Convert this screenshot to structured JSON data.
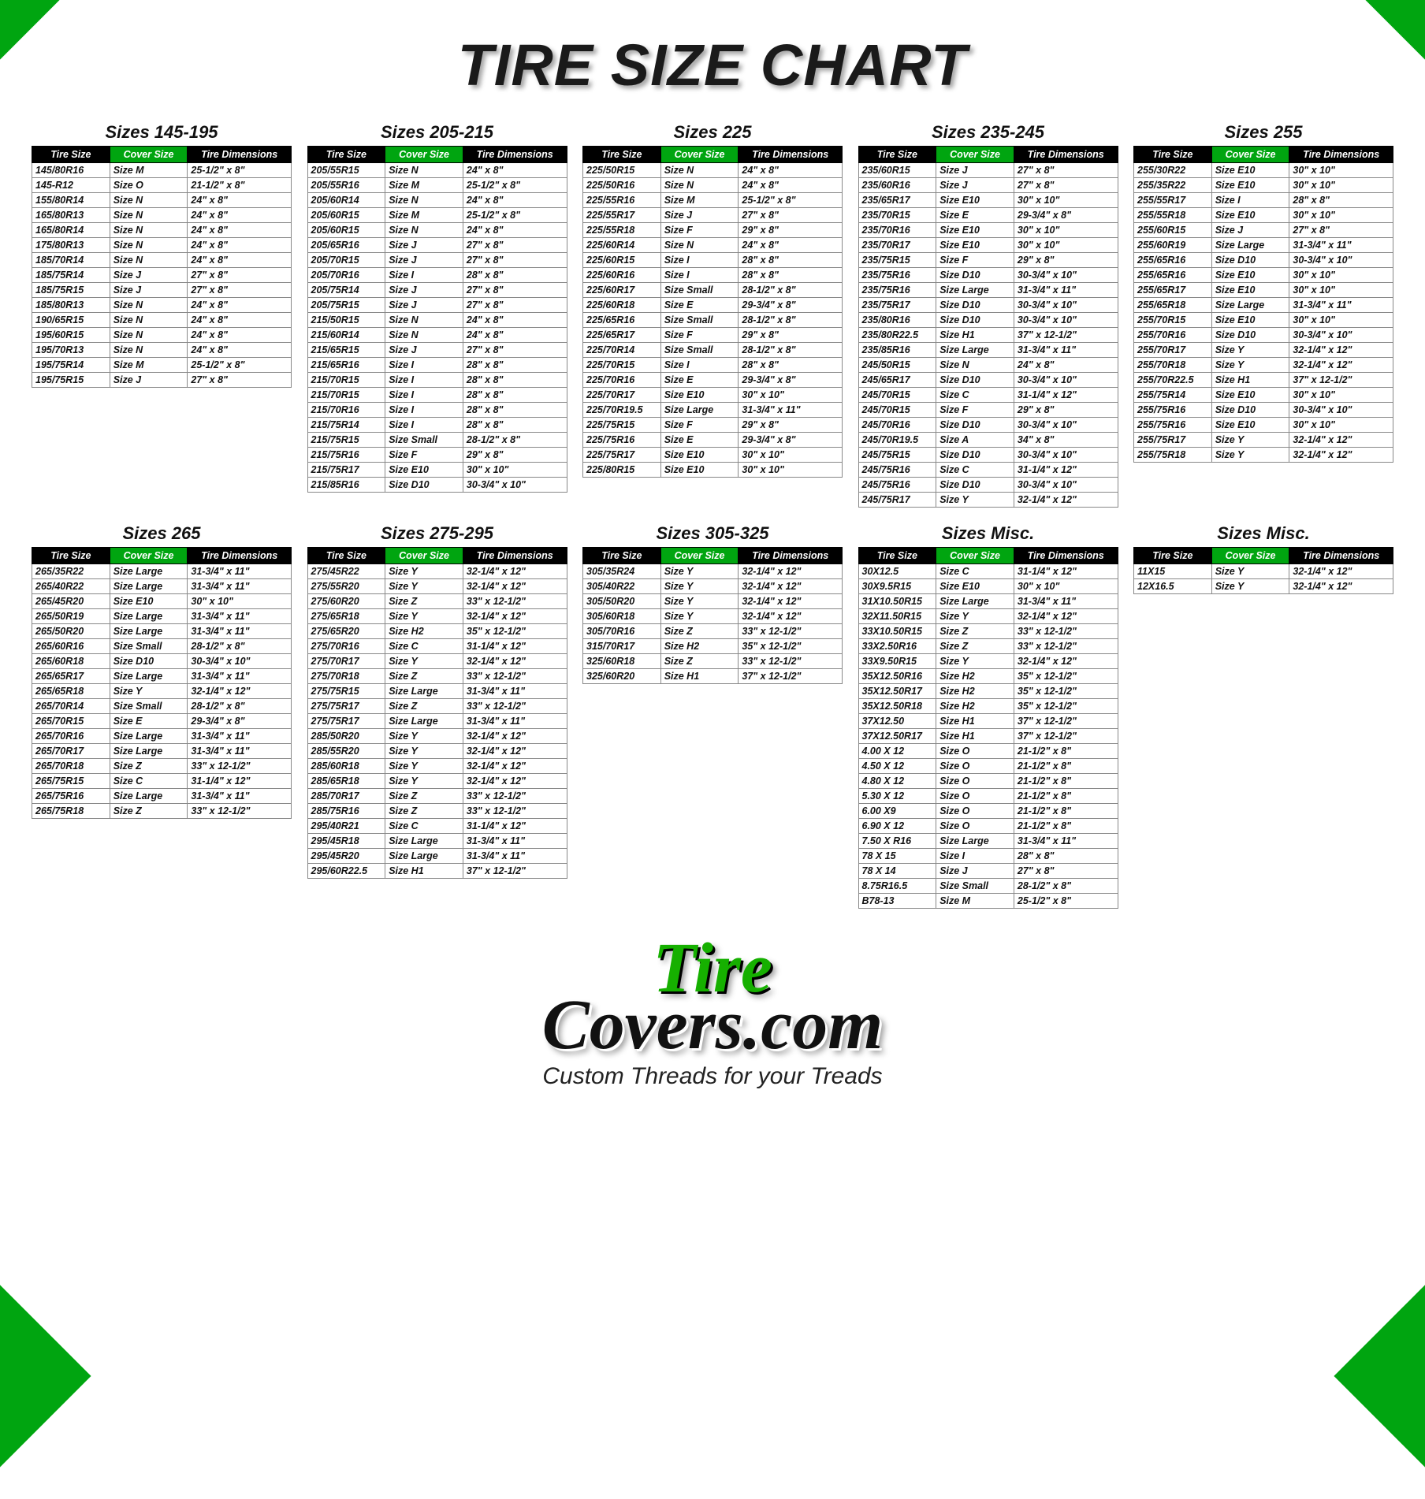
{
  "title": "TIRE SIZE CHART",
  "columns": [
    "Tire Size",
    "Cover Size",
    "Tire Dimensions"
  ],
  "logo_tire": "Tire",
  "logo_covers": "Covers.com",
  "tagline": "Custom Threads for your Treads",
  "blocks": [
    {
      "heading": "Sizes 145-195",
      "rows": [
        [
          "145/80R16",
          "Size M",
          "25-1/2\" x 8\""
        ],
        [
          "145-R12",
          "Size O",
          "21-1/2\" x 8\""
        ],
        [
          "155/80R14",
          "Size N",
          "24\" x 8\""
        ],
        [
          "165/80R13",
          "Size N",
          "24\" x 8\""
        ],
        [
          "165/80R14",
          "Size N",
          "24\" x 8\""
        ],
        [
          "175/80R13",
          "Size N",
          "24\" x 8\""
        ],
        [
          "185/70R14",
          "Size N",
          "24\" x 8\""
        ],
        [
          "185/75R14",
          "Size J",
          "27\" x 8\""
        ],
        [
          "185/75R15",
          "Size J",
          "27\" x 8\""
        ],
        [
          "185/80R13",
          "Size N",
          "24\" x 8\""
        ],
        [
          "190/65R15",
          "Size N",
          "24\" x 8\""
        ],
        [
          "195/60R15",
          "Size N",
          "24\" x 8\""
        ],
        [
          "195/70R13",
          "Size N",
          "24\" x 8\""
        ],
        [
          "195/75R14",
          "Size M",
          "25-1/2\" x 8\""
        ],
        [
          "195/75R15",
          "Size J",
          "27\" x 8\""
        ]
      ]
    },
    {
      "heading": "Sizes 205-215",
      "rows": [
        [
          "205/55R15",
          "Size N",
          "24\" x 8\""
        ],
        [
          "205/55R16",
          "Size M",
          "25-1/2\" x 8\""
        ],
        [
          "205/60R14",
          "Size N",
          "24\" x 8\""
        ],
        [
          "205/60R15",
          "Size M",
          "25-1/2\" x 8\""
        ],
        [
          "205/60R15",
          "Size N",
          "24\" x 8\""
        ],
        [
          "205/65R16",
          "Size J",
          "27\" x 8\""
        ],
        [
          "205/70R15",
          "Size J",
          "27\" x 8\""
        ],
        [
          "205/70R16",
          "Size I",
          "28\" x 8\""
        ],
        [
          "205/75R14",
          "Size J",
          "27\" x 8\""
        ],
        [
          "205/75R15",
          "Size J",
          "27\" x 8\""
        ],
        [
          "215/50R15",
          "Size N",
          "24\" x 8\""
        ],
        [
          "215/60R14",
          "Size N",
          "24\" x 8\""
        ],
        [
          "215/65R15",
          "Size J",
          "27\" x 8\""
        ],
        [
          "215/65R16",
          "Size I",
          "28\" x 8\""
        ],
        [
          "215/70R15",
          "Size I",
          "28\" x 8\""
        ],
        [
          "215/70R15",
          "Size I",
          "28\" x 8\""
        ],
        [
          "215/70R16",
          "Size I",
          "28\" x 8\""
        ],
        [
          "215/75R14",
          "Size I",
          "28\" x 8\""
        ],
        [
          "215/75R15",
          "Size Small",
          "28-1/2\" x 8\""
        ],
        [
          "215/75R16",
          "Size F",
          "29\" x 8\""
        ],
        [
          "215/75R17",
          "Size E10",
          "30\" x 10\""
        ],
        [
          "215/85R16",
          "Size D10",
          "30-3/4\" x 10\""
        ]
      ]
    },
    {
      "heading": "Sizes 225",
      "rows": [
        [
          "225/50R15",
          "Size N",
          "24\" x 8\""
        ],
        [
          "225/50R16",
          "Size N",
          "24\" x 8\""
        ],
        [
          "225/55R16",
          "Size M",
          "25-1/2\" x 8\""
        ],
        [
          "225/55R17",
          "Size J",
          "27\" x 8\""
        ],
        [
          "225/55R18",
          "Size F",
          "29\" x 8\""
        ],
        [
          "225/60R14",
          "Size N",
          "24\" x 8\""
        ],
        [
          "225/60R15",
          "Size I",
          "28\" x 8\""
        ],
        [
          "225/60R16",
          "Size I",
          "28\" x 8\""
        ],
        [
          "225/60R17",
          "Size Small",
          "28-1/2\" x 8\""
        ],
        [
          "225/60R18",
          "Size E",
          "29-3/4\" x 8\""
        ],
        [
          "225/65R16",
          "Size Small",
          "28-1/2\" x 8\""
        ],
        [
          "225/65R17",
          "Size F",
          "29\" x 8\""
        ],
        [
          "225/70R14",
          "Size Small",
          "28-1/2\" x 8\""
        ],
        [
          "225/70R15",
          "Size I",
          "28\" x 8\""
        ],
        [
          "225/70R16",
          "Size E",
          "29-3/4\" x 8\""
        ],
        [
          "225/70R17",
          "Size E10",
          "30\" x 10\""
        ],
        [
          "225/70R19.5",
          "Size Large",
          "31-3/4\" x 11\""
        ],
        [
          "225/75R15",
          "Size F",
          "29\" x 8\""
        ],
        [
          "225/75R16",
          "Size E",
          "29-3/4\" x 8\""
        ],
        [
          "225/75R17",
          "Size E10",
          "30\" x 10\""
        ],
        [
          "225/80R15",
          "Size E10",
          "30\" x 10\""
        ]
      ]
    },
    {
      "heading": "Sizes 235-245",
      "rows": [
        [
          "235/60R15",
          "Size J",
          "27\" x 8\""
        ],
        [
          "235/60R16",
          "Size J",
          "27\" x 8\""
        ],
        [
          "235/65R17",
          "Size E10",
          "30\" x 10\""
        ],
        [
          "235/70R15",
          "Size E",
          "29-3/4\" x 8\""
        ],
        [
          "235/70R16",
          "Size E10",
          "30\" x 10\""
        ],
        [
          "235/70R17",
          "Size E10",
          "30\" x 10\""
        ],
        [
          "235/75R15",
          "Size F",
          "29\" x 8\""
        ],
        [
          "235/75R16",
          "Size D10",
          "30-3/4\" x 10\""
        ],
        [
          "235/75R16",
          "Size Large",
          "31-3/4\" x 11\""
        ],
        [
          "235/75R17",
          "Size D10",
          "30-3/4\" x 10\""
        ],
        [
          "235/80R16",
          "Size D10",
          "30-3/4\" x 10\""
        ],
        [
          "235/80R22.5",
          "Size H1",
          "37\" x 12-1/2\""
        ],
        [
          "235/85R16",
          "Size Large",
          "31-3/4\" x 11\""
        ],
        [
          "245/50R15",
          "Size N",
          "24\" x 8\""
        ],
        [
          "245/65R17",
          "Size D10",
          "30-3/4\" x 10\""
        ],
        [
          "245/70R15",
          "Size C",
          "31-1/4\" x 12\""
        ],
        [
          "245/70R15",
          "Size F",
          "29\" x 8\""
        ],
        [
          "245/70R16",
          "Size D10",
          "30-3/4\" x 10\""
        ],
        [
          "245/70R19.5",
          "Size A",
          "34\" x 8\""
        ],
        [
          "245/75R15",
          "Size D10",
          "30-3/4\" x 10\""
        ],
        [
          "245/75R16",
          "Size C",
          "31-1/4\" x 12\""
        ],
        [
          "245/75R16",
          "Size D10",
          "30-3/4\" x 10\""
        ],
        [
          "245/75R17",
          "Size Y",
          "32-1/4\" x 12\""
        ]
      ]
    },
    {
      "heading": "Sizes 255",
      "rows": [
        [
          "255/30R22",
          "Size E10",
          "30\" x 10\""
        ],
        [
          "255/35R22",
          "Size E10",
          "30\" x 10\""
        ],
        [
          "255/55R17",
          "Size I",
          "28\" x 8\""
        ],
        [
          "255/55R18",
          "Size E10",
          "30\" x 10\""
        ],
        [
          "255/60R15",
          "Size J",
          "27\" x 8\""
        ],
        [
          "255/60R19",
          "Size Large",
          "31-3/4\" x 11\""
        ],
        [
          "255/65R16",
          "Size D10",
          "30-3/4\" x 10\""
        ],
        [
          "255/65R16",
          "Size E10",
          "30\" x 10\""
        ],
        [
          "255/65R17",
          "Size E10",
          "30\" x 10\""
        ],
        [
          "255/65R18",
          "Size Large",
          "31-3/4\" x 11\""
        ],
        [
          "255/70R15",
          "Size E10",
          "30\" x 10\""
        ],
        [
          "255/70R16",
          "Size D10",
          "30-3/4\" x 10\""
        ],
        [
          "255/70R17",
          "Size Y",
          "32-1/4\" x 12\""
        ],
        [
          "255/70R18",
          "Size Y",
          "32-1/4\" x 12\""
        ],
        [
          "255/70R22.5",
          "Size H1",
          "37\" x 12-1/2\""
        ],
        [
          "255/75R14",
          "Size E10",
          "30\" x 10\""
        ],
        [
          "255/75R16",
          "Size D10",
          "30-3/4\" x 10\""
        ],
        [
          "255/75R16",
          "Size E10",
          "30\" x 10\""
        ],
        [
          "255/75R17",
          "Size Y",
          "32-1/4\" x 12\""
        ],
        [
          "255/75R18",
          "Size Y",
          "32-1/4\" x 12\""
        ]
      ]
    },
    {
      "heading": "Sizes 265",
      "rows": [
        [
          "265/35R22",
          "Size Large",
          "31-3/4\" x 11\""
        ],
        [
          "265/40R22",
          "Size Large",
          "31-3/4\" x 11\""
        ],
        [
          "265/45R20",
          "Size E10",
          "30\" x 10\""
        ],
        [
          "265/50R19",
          "Size Large",
          "31-3/4\" x 11\""
        ],
        [
          "265/50R20",
          "Size Large",
          "31-3/4\" x 11\""
        ],
        [
          "265/60R16",
          "Size Small",
          "28-1/2\" x 8\""
        ],
        [
          "265/60R18",
          "Size D10",
          "30-3/4\" x 10\""
        ],
        [
          "265/65R17",
          "Size Large",
          "31-3/4\" x 11\""
        ],
        [
          "265/65R18",
          "Size Y",
          "32-1/4\" x 12\""
        ],
        [
          "265/70R14",
          "Size Small",
          "28-1/2\" x 8\""
        ],
        [
          "265/70R15",
          "Size E",
          "29-3/4\" x 8\""
        ],
        [
          "265/70R16",
          "Size Large",
          "31-3/4\" x 11\""
        ],
        [
          "265/70R17",
          "Size Large",
          "31-3/4\" x 11\""
        ],
        [
          "265/70R18",
          "Size Z",
          "33\" x 12-1/2\""
        ],
        [
          "265/75R15",
          "Size C",
          "31-1/4\" x 12\""
        ],
        [
          "265/75R16",
          "Size Large",
          "31-3/4\" x 11\""
        ],
        [
          "265/75R18",
          "Size Z",
          "33\" x 12-1/2\""
        ]
      ]
    },
    {
      "heading": "Sizes 275-295",
      "rows": [
        [
          "275/45R22",
          "Size Y",
          "32-1/4\" x 12\""
        ],
        [
          "275/55R20",
          "Size Y",
          "32-1/4\" x 12\""
        ],
        [
          "275/60R20",
          "Size Z",
          "33\" x 12-1/2\""
        ],
        [
          "275/65R18",
          "Size Y",
          "32-1/4\" x 12\""
        ],
        [
          "275/65R20",
          "Size H2",
          "35\" x 12-1/2\""
        ],
        [
          "275/70R16",
          "Size C",
          "31-1/4\" x 12\""
        ],
        [
          "275/70R17",
          "Size Y",
          "32-1/4\" x 12\""
        ],
        [
          "275/70R18",
          "Size Z",
          "33\" x 12-1/2\""
        ],
        [
          "275/75R15",
          "Size Large",
          "31-3/4\" x 11\""
        ],
        [
          "275/75R17",
          "Size Z",
          "33\" x 12-1/2\""
        ],
        [
          "275/75R17",
          "Size Large",
          "31-3/4\" x 11\""
        ],
        [
          "285/50R20",
          "Size Y",
          "32-1/4\" x 12\""
        ],
        [
          "285/55R20",
          "Size Y",
          "32-1/4\" x 12\""
        ],
        [
          "285/60R18",
          "Size Y",
          "32-1/4\" x 12\""
        ],
        [
          "285/65R18",
          "Size Y",
          "32-1/4\" x 12\""
        ],
        [
          "285/70R17",
          "Size Z",
          "33\" x 12-1/2\""
        ],
        [
          "285/75R16",
          "Size Z",
          "33\" x 12-1/2\""
        ],
        [
          "295/40R21",
          "Size C",
          "31-1/4\" x 12\""
        ],
        [
          "295/45R18",
          "Size Large",
          "31-3/4\" x 11\""
        ],
        [
          "295/45R20",
          "Size Large",
          "31-3/4\" x 11\""
        ],
        [
          "295/60R22.5",
          "Size H1",
          "37\" x 12-1/2\""
        ]
      ]
    },
    {
      "heading": "Sizes 305-325",
      "rows": [
        [
          "305/35R24",
          "Size Y",
          "32-1/4\" x 12\""
        ],
        [
          "305/40R22",
          "Size Y",
          "32-1/4\" x 12\""
        ],
        [
          "305/50R20",
          "Size Y",
          "32-1/4\" x 12\""
        ],
        [
          "305/60R18",
          "Size Y",
          "32-1/4\" x 12\""
        ],
        [
          "305/70R16",
          "Size Z",
          "33\" x 12-1/2\""
        ],
        [
          "315/70R17",
          "Size H2",
          "35\" x 12-1/2\""
        ],
        [
          "325/60R18",
          "Size Z",
          "33\" x 12-1/2\""
        ],
        [
          "325/60R20",
          "Size H1",
          "37\" x 12-1/2\""
        ]
      ]
    },
    {
      "heading": "Sizes Misc.",
      "rows": [
        [
          "30X12.5",
          "Size C",
          "31-1/4\" x 12\""
        ],
        [
          "30X9.5R15",
          "Size E10",
          "30\" x 10\""
        ],
        [
          "31X10.50R15",
          "Size Large",
          "31-3/4\" x 11\""
        ],
        [
          "32X11.50R15",
          "Size Y",
          "32-1/4\" x 12\""
        ],
        [
          "33X10.50R15",
          "Size Z",
          "33\" x 12-1/2\""
        ],
        [
          "33X2.50R16",
          "Size Z",
          "33\" x 12-1/2\""
        ],
        [
          "33X9.50R15",
          "Size Y",
          "32-1/4\" x 12\""
        ],
        [
          "35X12.50R16",
          "Size H2",
          "35\" x 12-1/2\""
        ],
        [
          "35X12.50R17",
          "Size H2",
          "35\" x 12-1/2\""
        ],
        [
          "35X12.50R18",
          "Size H2",
          "35\" x 12-1/2\""
        ],
        [
          "37X12.50",
          "Size H1",
          "37\" x 12-1/2\""
        ],
        [
          "37X12.50R17",
          "Size H1",
          "37\" x 12-1/2\""
        ],
        [
          "4.00 X 12",
          "Size O",
          "21-1/2\" x 8\""
        ],
        [
          "4.50 X 12",
          "Size O",
          "21-1/2\" x 8\""
        ],
        [
          "4.80 X 12",
          "Size O",
          "21-1/2\" x 8\""
        ],
        [
          "5.30 X 12",
          "Size O",
          "21-1/2\" x 8\""
        ],
        [
          "6.00 X9",
          "Size O",
          "21-1/2\" x 8\""
        ],
        [
          "6.90 X 12",
          "Size O",
          "21-1/2\" x 8\""
        ],
        [
          "7.50 X R16",
          "Size Large",
          "31-3/4\" x 11\""
        ],
        [
          "78 X 15",
          "Size I",
          "28\" x 8\""
        ],
        [
          "78 X 14",
          "Size J",
          "27\" x 8\""
        ],
        [
          "8.75R16.5",
          "Size Small",
          "28-1/2\" x 8\""
        ],
        [
          "B78-13",
          "Size M",
          "25-1/2\" x 8\""
        ]
      ]
    },
    {
      "heading": "Sizes Misc.",
      "rows": [
        [
          "11X15",
          "Size Y",
          "32-1/4\" x 12\""
        ],
        [
          "12X16.5",
          "Size Y",
          "32-1/4\" x 12\""
        ]
      ]
    }
  ]
}
